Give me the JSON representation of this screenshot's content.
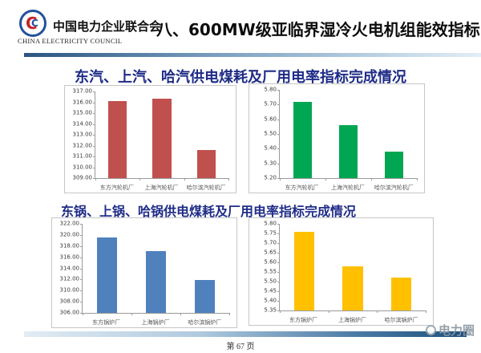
{
  "header": {
    "logo": {
      "org_cn": "中国电力企业联合会",
      "org_en": "CHINA ELECTRICITY COUNCIL",
      "emblem_icon": "cec-circular-emblem"
    },
    "title": "八、600MW级亚临界湿冷火电机组能效指标"
  },
  "sections": [
    {
      "title": "东汽、上汽、哈汽供电煤耗及厂用电率指标完成情况"
    },
    {
      "title": "东锅、上锅、哈锅供电煤耗及厂用电率指标完成情况"
    }
  ],
  "footer": {
    "page_label": "第 67 页",
    "watermark": "电力圈",
    "watermark_icon": "dianliquan-logo"
  },
  "colors": {
    "bar_red": "#C0504D",
    "bar_green": "#00A651",
    "bar_blue": "#4F81BD",
    "bar_yellow": "#FFC000",
    "section_title_navy": "#1F2C87",
    "header_line_dark": "#2A5580",
    "footer_line_dark": "#1C4F7C"
  },
  "chart_data": [
    {
      "id": "turbine_coal",
      "type": "bar",
      "title": "",
      "xlabel": "",
      "ylabel": "",
      "categories": [
        "东方汽轮机厂",
        "上海汽轮机厂",
        "哈尔滨汽轮机厂"
      ],
      "values": [
        316.1,
        316.3,
        311.6
      ],
      "ylim": [
        309,
        317
      ],
      "y_step": 1,
      "y_tick_format": "2dp",
      "bar_color": "#C0504D",
      "grid": false,
      "legend": "none"
    },
    {
      "id": "turbine_aux",
      "type": "bar",
      "title": "",
      "xlabel": "",
      "ylabel": "",
      "categories": [
        "东方汽轮机厂",
        "上海汽轮机厂",
        "哈尔滨汽轮机厂"
      ],
      "values": [
        5.72,
        5.56,
        5.38
      ],
      "ylim": [
        5.2,
        5.8
      ],
      "y_step": 0.1,
      "y_tick_format": "2dp",
      "bar_color": "#00A651",
      "grid": false,
      "legend": "none"
    },
    {
      "id": "boiler_coal",
      "type": "bar",
      "title": "",
      "xlabel": "",
      "ylabel": "",
      "categories": [
        "东方锅炉厂",
        "上海锅炉厂",
        "哈尔滨锅炉厂"
      ],
      "values": [
        319.6,
        317.1,
        311.9
      ],
      "ylim": [
        306,
        322
      ],
      "y_step": 2,
      "y_tick_format": "2dp",
      "bar_color": "#4F81BD",
      "grid": false,
      "legend": "none"
    },
    {
      "id": "boiler_aux",
      "type": "bar",
      "title": "",
      "xlabel": "",
      "ylabel": "",
      "categories": [
        "东方锅炉厂",
        "上海锅炉厂",
        "哈尔滨锅炉厂"
      ],
      "values": [
        5.76,
        5.58,
        5.52
      ],
      "ylim": [
        5.35,
        5.8
      ],
      "y_step": 0.05,
      "y_tick_format": "2dp",
      "bar_color": "#FFC000",
      "grid": false,
      "legend": "none"
    }
  ]
}
